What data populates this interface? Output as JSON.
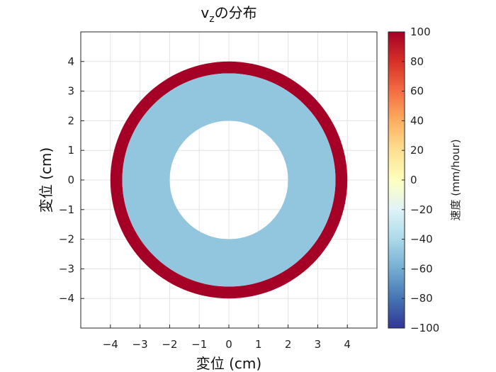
{
  "chart_data": {
    "type": "heatmap",
    "title_main": "v",
    "title_sub": "z",
    "title_rest": "の分布",
    "xlabel": "変位 (cm)",
    "ylabel": "変位 (cm)",
    "xlim": [
      -5,
      5
    ],
    "ylim": [
      -5,
      5
    ],
    "xticks": [
      -4,
      -3,
      -2,
      -1,
      0,
      1,
      2,
      3,
      4
    ],
    "yticks": [
      -4,
      -3,
      -2,
      -1,
      0,
      1,
      2,
      3,
      4
    ],
    "xtick_labels": [
      "−4",
      "−3",
      "−2",
      "−1",
      "0",
      "1",
      "2",
      "3",
      "4"
    ],
    "ytick_labels": [
      "−4",
      "−3",
      "−2",
      "−1",
      "0",
      "1",
      "2",
      "3",
      "4"
    ],
    "grid": true,
    "rings": [
      {
        "r_inner": 3.6,
        "r_outer": 4.0,
        "value": 100,
        "color": "#a50026"
      },
      {
        "r_inner": 2.0,
        "r_outer": 3.6,
        "value": -40,
        "color": "#92c5de"
      }
    ],
    "colorbar": {
      "label": "速度 (mm/hour)",
      "range": [
        -100,
        100
      ],
      "ticks": [
        100,
        80,
        60,
        40,
        20,
        0,
        -20,
        -40,
        -60,
        -80,
        -100
      ],
      "tick_labels": [
        "100",
        "80",
        "60",
        "40",
        "20",
        "0",
        "−20",
        "−40",
        "−60",
        "−80",
        "−100"
      ],
      "colormap": [
        "#313695",
        "#4575b4",
        "#74add1",
        "#abd9e9",
        "#e0f3f8",
        "#ffffbf",
        "#fee090",
        "#fdae61",
        "#f46d43",
        "#d73027",
        "#a50026"
      ]
    }
  }
}
